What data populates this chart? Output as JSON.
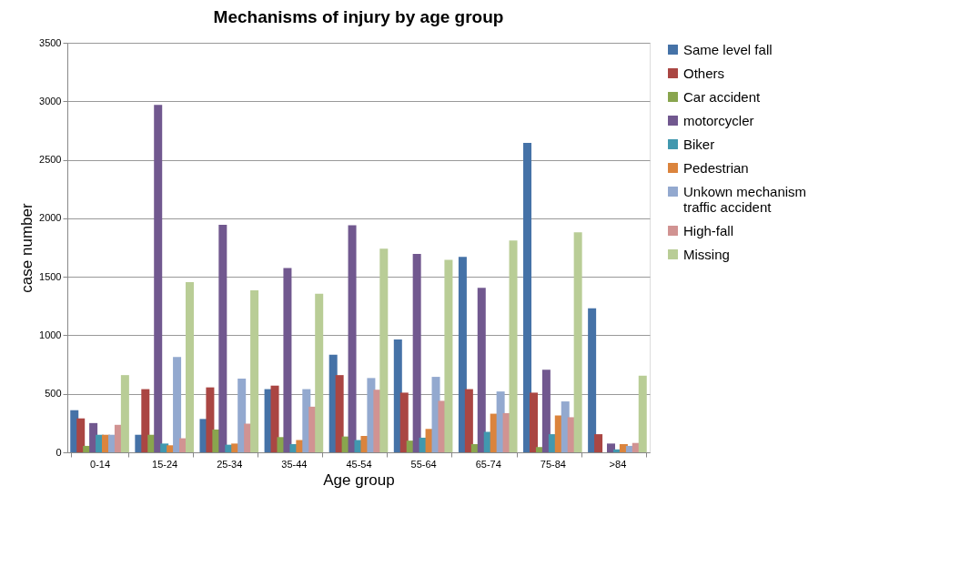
{
  "chart_data": {
    "type": "bar",
    "title": "Mechanisms of injury by age group",
    "xlabel": "Age group",
    "ylabel": "case number",
    "categories": [
      "0-14",
      "15-24",
      "25-34",
      "35-44",
      "45-54",
      "55-64",
      "65-74",
      "75-84",
      ">84"
    ],
    "series": [
      {
        "name": "Same level fall",
        "color": "#4572a7",
        "values": [
          360,
          150,
          285,
          540,
          835,
          965,
          1670,
          2645,
          1230
        ]
      },
      {
        "name": "Others",
        "color": "#aa4643",
        "values": [
          290,
          540,
          555,
          570,
          660,
          510,
          540,
          510,
          155
        ]
      },
      {
        "name": "Car  accident",
        "color": "#89a54e",
        "values": [
          55,
          150,
          195,
          130,
          135,
          100,
          70,
          45,
          0
        ]
      },
      {
        "name": "motorcycler",
        "color": "#71588f",
        "values": [
          250,
          2970,
          1945,
          1575,
          1940,
          1695,
          1405,
          705,
          75
        ]
      },
      {
        "name": "Biker",
        "color": "#4198af",
        "values": [
          150,
          75,
          65,
          70,
          105,
          125,
          175,
          155,
          25
        ]
      },
      {
        "name": "Pedestrian",
        "color": "#db843d",
        "values": [
          150,
          60,
          75,
          105,
          140,
          200,
          330,
          315,
          70
        ]
      },
      {
        "name": "Unkown mechanism traffic accident",
        "color": "#93a9cf",
        "values": [
          150,
          815,
          630,
          540,
          635,
          645,
          520,
          435,
          55
        ]
      },
      {
        "name": "High-fall",
        "color": "#d19392",
        "values": [
          235,
          120,
          245,
          390,
          535,
          440,
          335,
          300,
          80
        ]
      },
      {
        "name": "Missing",
        "color": "#b9cd96",
        "values": [
          660,
          1455,
          1385,
          1355,
          1740,
          1645,
          1810,
          1880,
          655
        ]
      }
    ],
    "ylim": [
      0,
      3500
    ],
    "yticks": [
      0,
      500,
      1000,
      1500,
      2000,
      2500,
      3000,
      3500
    ],
    "grid": "y",
    "legend": "right"
  }
}
